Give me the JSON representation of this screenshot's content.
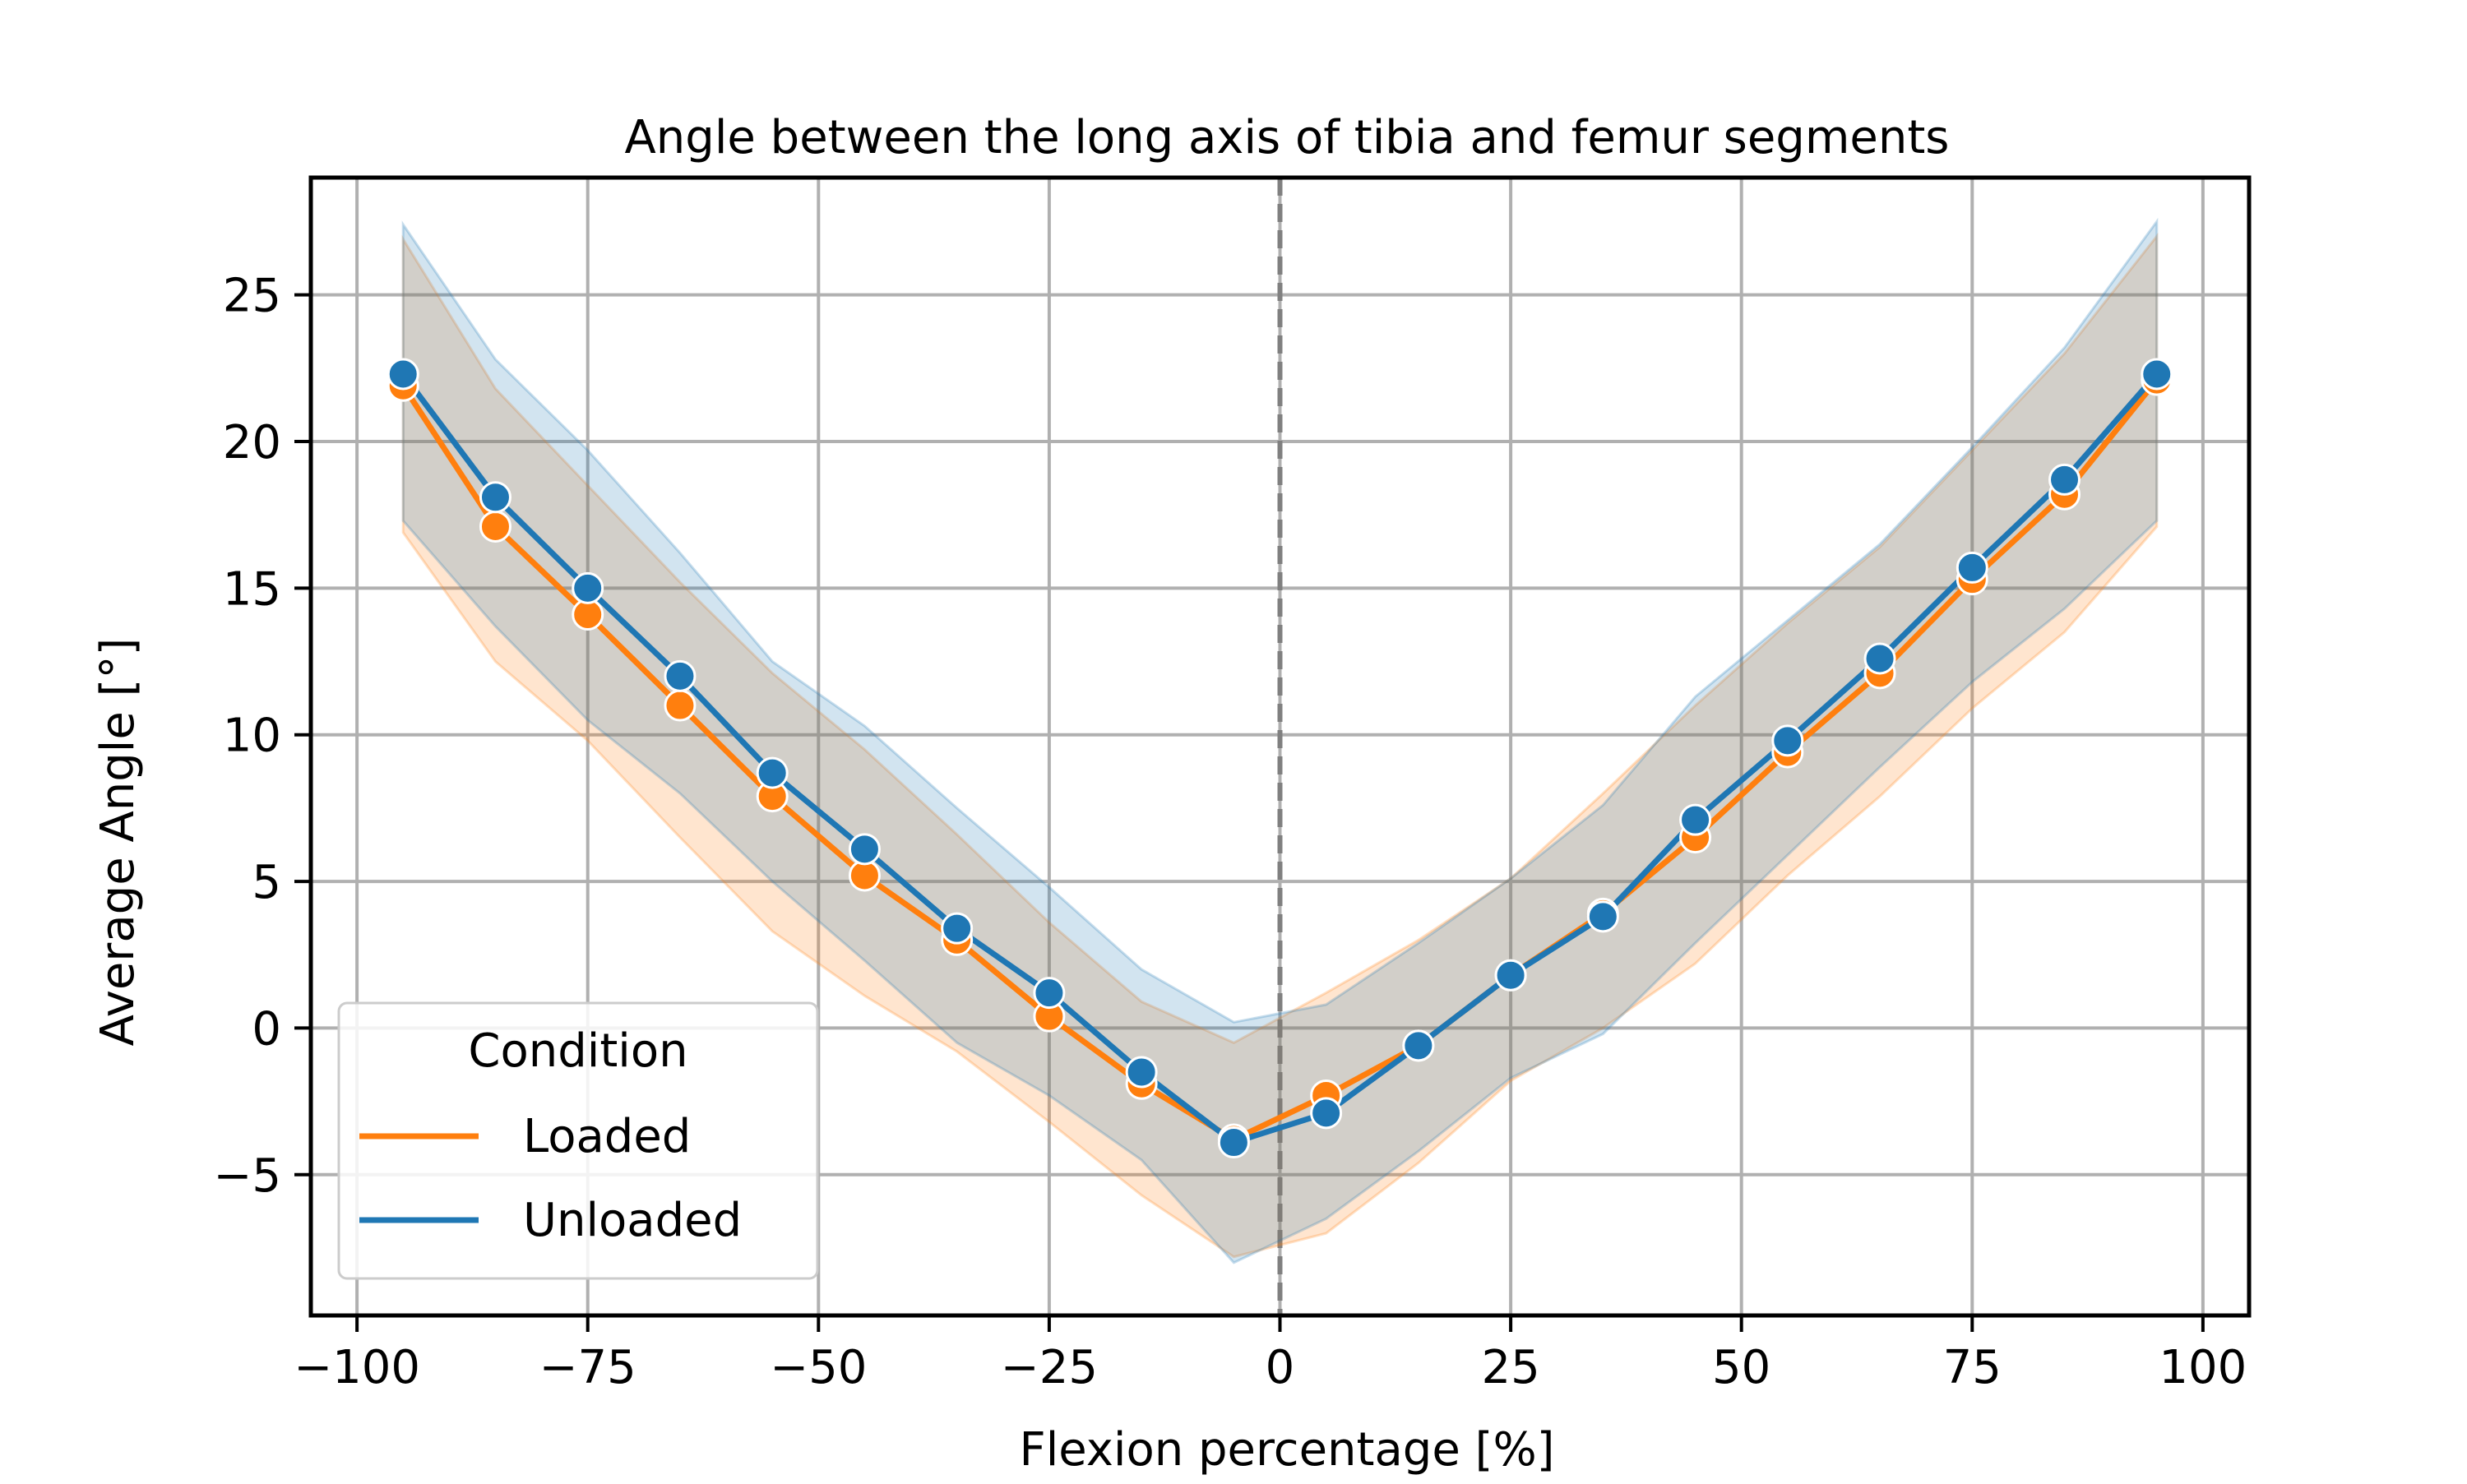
{
  "chart_data": {
    "type": "line",
    "title": "Angle between the long axis of tibia and femur segments",
    "xlabel": "Flexion percentage [%]",
    "ylabel": "Average Angle [°]",
    "xlim": [
      -105,
      105
    ],
    "ylim": [
      -9.8,
      29
    ],
    "x_scale": "linear",
    "y_scale": "linear",
    "grid": true,
    "x_ticks": [
      -100,
      -75,
      -50,
      -25,
      0,
      25,
      50,
      75,
      100
    ],
    "x_tick_labels": [
      "−100",
      "−75",
      "−50",
      "−25",
      "0",
      "25",
      "50",
      "75",
      "100"
    ],
    "y_ticks": [
      -5,
      0,
      5,
      10,
      15,
      20,
      25
    ],
    "y_tick_labels": [
      "−5",
      "0",
      "5",
      "10",
      "15",
      "20",
      "25"
    ],
    "reference_line": {
      "x": 0,
      "style": "dashed",
      "color": "#808080"
    },
    "legend": {
      "title": "Condition",
      "placement": "lower-left",
      "entries": [
        "Loaded",
        "Unloaded"
      ]
    },
    "x": [
      -95,
      -85,
      -75,
      -65,
      -55,
      -45,
      -35,
      -25,
      -15,
      -5,
      5,
      15,
      25,
      35,
      45,
      55,
      65,
      75,
      85,
      95
    ],
    "series": [
      {
        "name": "Loaded",
        "color": "#ff7f0e",
        "values": [
          21.9,
          17.1,
          14.1,
          11.0,
          7.9,
          5.2,
          3.0,
          0.4,
          -1.9,
          -3.8,
          -2.3,
          -0.6,
          1.8,
          3.9,
          6.5,
          9.4,
          12.1,
          15.3,
          18.2,
          22.1
        ],
        "ci_low": [
          16.9,
          12.5,
          9.8,
          6.5,
          3.3,
          1.1,
          -0.8,
          -3.2,
          -5.7,
          -7.8,
          -7.0,
          -4.6,
          -1.8,
          0.0,
          2.2,
          5.2,
          7.9,
          10.9,
          13.5,
          17.1
        ],
        "ci_high": [
          26.9,
          21.8,
          18.5,
          15.2,
          12.1,
          9.5,
          6.6,
          3.6,
          0.9,
          -0.5,
          1.2,
          3.0,
          5.1,
          8.0,
          11.0,
          13.8,
          16.4,
          19.7,
          23.0,
          27.0
        ]
      },
      {
        "name": "Unloaded",
        "color": "#1f77b4",
        "values": [
          22.3,
          18.1,
          15.0,
          12.0,
          8.7,
          6.1,
          3.4,
          1.2,
          -1.5,
          -3.9,
          -2.9,
          -0.6,
          1.8,
          3.8,
          7.1,
          9.8,
          12.6,
          15.7,
          18.7,
          22.3
        ],
        "ci_low": [
          17.3,
          13.7,
          10.5,
          8.0,
          5.0,
          2.3,
          -0.5,
          -2.3,
          -4.5,
          -8.0,
          -6.5,
          -4.2,
          -1.7,
          -0.2,
          2.9,
          5.9,
          8.9,
          11.8,
          14.3,
          17.3
        ],
        "ci_high": [
          27.4,
          22.8,
          19.7,
          16.2,
          12.5,
          10.3,
          7.5,
          4.8,
          2.0,
          0.2,
          0.8,
          2.9,
          5.1,
          7.6,
          11.3,
          13.9,
          16.5,
          19.8,
          23.2,
          27.5
        ]
      }
    ]
  }
}
